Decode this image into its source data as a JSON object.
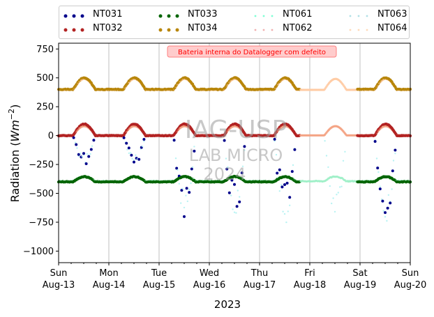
{
  "chart_data": {
    "type": "scatter",
    "title": "",
    "ylabel": "Radiation ($Wm^{-2}$)",
    "xlabel": "2023",
    "ylim": [
      -1100,
      800
    ],
    "yticks": [
      750,
      500,
      250,
      0,
      -250,
      -500,
      -750,
      -1000
    ],
    "ytick_labels": [
      "750",
      "500",
      "250",
      "0",
      "−250",
      "−500",
      "−750",
      "−1000"
    ],
    "x_ticks": [
      {
        "day": "Sun",
        "date": "Aug-13"
      },
      {
        "day": "Mon",
        "date": "Aug-14"
      },
      {
        "day": "Tue",
        "date": "Aug-15"
      },
      {
        "day": "Wed",
        "date": "Aug-16"
      },
      {
        "day": "Thu",
        "date": "Aug-17"
      },
      {
        "day": "Fri",
        "date": "Aug-18"
      },
      {
        "day": "Sat",
        "date": "Aug-19"
      },
      {
        "day": "Sun",
        "date": "Aug-20"
      }
    ],
    "grid": "vertical",
    "legend_placement": "top-outside",
    "annotation": "Bateria interna do Datalogger com defeito",
    "watermark": [
      "IAG-USP",
      "LAB MICRO",
      "2024"
    ],
    "series": [
      {
        "name": "NT031",
        "color": "#00008b",
        "style": "dots"
      },
      {
        "name": "NT032",
        "color": "#b22222",
        "style": "dots"
      },
      {
        "name": "NT033",
        "color": "#006400",
        "style": "dots"
      },
      {
        "name": "NT034",
        "color": "#b8860b",
        "style": "dots"
      },
      {
        "name": "NT061",
        "color": "#7fffd4",
        "style": "faint-dots"
      },
      {
        "name": "NT062",
        "color": "#f08080",
        "style": "faint-dots"
      },
      {
        "name": "NT063",
        "color": "#b0e0e6",
        "style": "faint-dots"
      },
      {
        "name": "NT064",
        "color": "#ffdab9",
        "style": "faint-dots"
      }
    ],
    "upper_baseline": 400,
    "upper_peak": 500,
    "net_baseline": 0,
    "net_peak": 100,
    "lower_baseline": -395,
    "lower_dip_min": -800
  }
}
